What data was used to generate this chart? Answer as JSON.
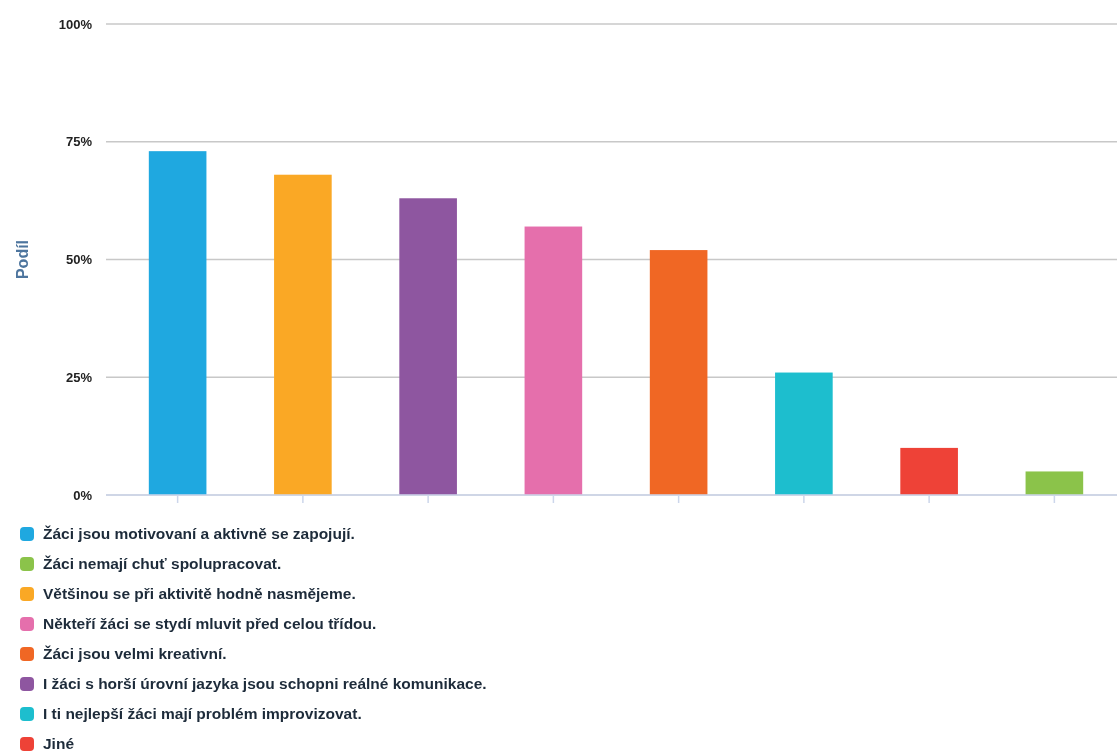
{
  "chart_data": {
    "type": "bar",
    "ylabel": "Podíl",
    "categories": [
      null,
      null,
      null,
      null,
      null,
      null,
      null,
      null
    ],
    "series": [
      {
        "name": "Žáci jsou motivovaní a aktivně se zapojují.",
        "color": "#1fa8e0",
        "values": [
          73,
          null,
          null,
          null,
          null,
          null,
          null,
          null
        ]
      },
      {
        "name": "Žáci nemají chuť spolupracovat.",
        "color": "#8bc34a",
        "values": [
          null,
          null,
          null,
          null,
          null,
          null,
          null,
          5
        ]
      },
      {
        "name": "Většinou se při aktivitě hodně nasmějeme.",
        "color": "#faa825",
        "values": [
          null,
          68,
          null,
          null,
          null,
          null,
          null,
          null
        ]
      },
      {
        "name": "Někteří žáci se stydí mluvit před celou třídou.",
        "color": "#e56fac",
        "values": [
          null,
          null,
          null,
          57,
          null,
          null,
          null,
          null
        ]
      },
      {
        "name": "Žáci jsou velmi kreativní.",
        "color": "#f06724",
        "values": [
          null,
          null,
          null,
          null,
          52,
          null,
          null,
          null
        ]
      },
      {
        "name": "I žáci s horší úrovní jazyka jsou schopni reálné komunikace.",
        "color": "#8e56a0",
        "values": [
          null,
          null,
          63,
          null,
          null,
          null,
          null,
          null
        ]
      },
      {
        "name": "I ti nejlepší žáci mají problém improvizovat.",
        "color": "#1dbece",
        "values": [
          null,
          null,
          null,
          null,
          null,
          26,
          null,
          null
        ]
      },
      {
        "name": "Jiné",
        "color": "#ee4237",
        "values": [
          null,
          null,
          null,
          null,
          null,
          null,
          10,
          null
        ]
      }
    ],
    "stacked": true,
    "ylim": [
      0,
      100
    ],
    "yticks": [
      {
        "value": 0,
        "label": "0%"
      },
      {
        "value": 25,
        "label": "25%"
      },
      {
        "value": 50,
        "label": "50%"
      },
      {
        "value": 75,
        "label": "75%"
      },
      {
        "value": 100,
        "label": "100%"
      }
    ],
    "grid": "y",
    "legend": "bottom",
    "tick_labels": "y"
  }
}
